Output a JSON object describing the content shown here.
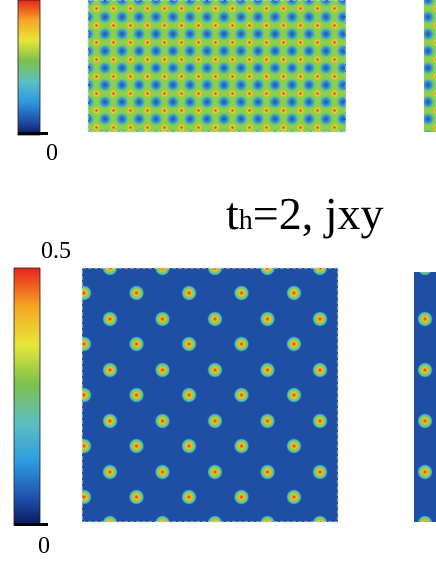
{
  "top_panel": {
    "colorbar_min_label": 0
  },
  "title": {
    "main": "t",
    "subscript": "h",
    "rest": "=2, jxy"
  },
  "bottom_panel": {
    "colorbar_max_label": 0.5,
    "colorbar_min_label": 0
  }
}
